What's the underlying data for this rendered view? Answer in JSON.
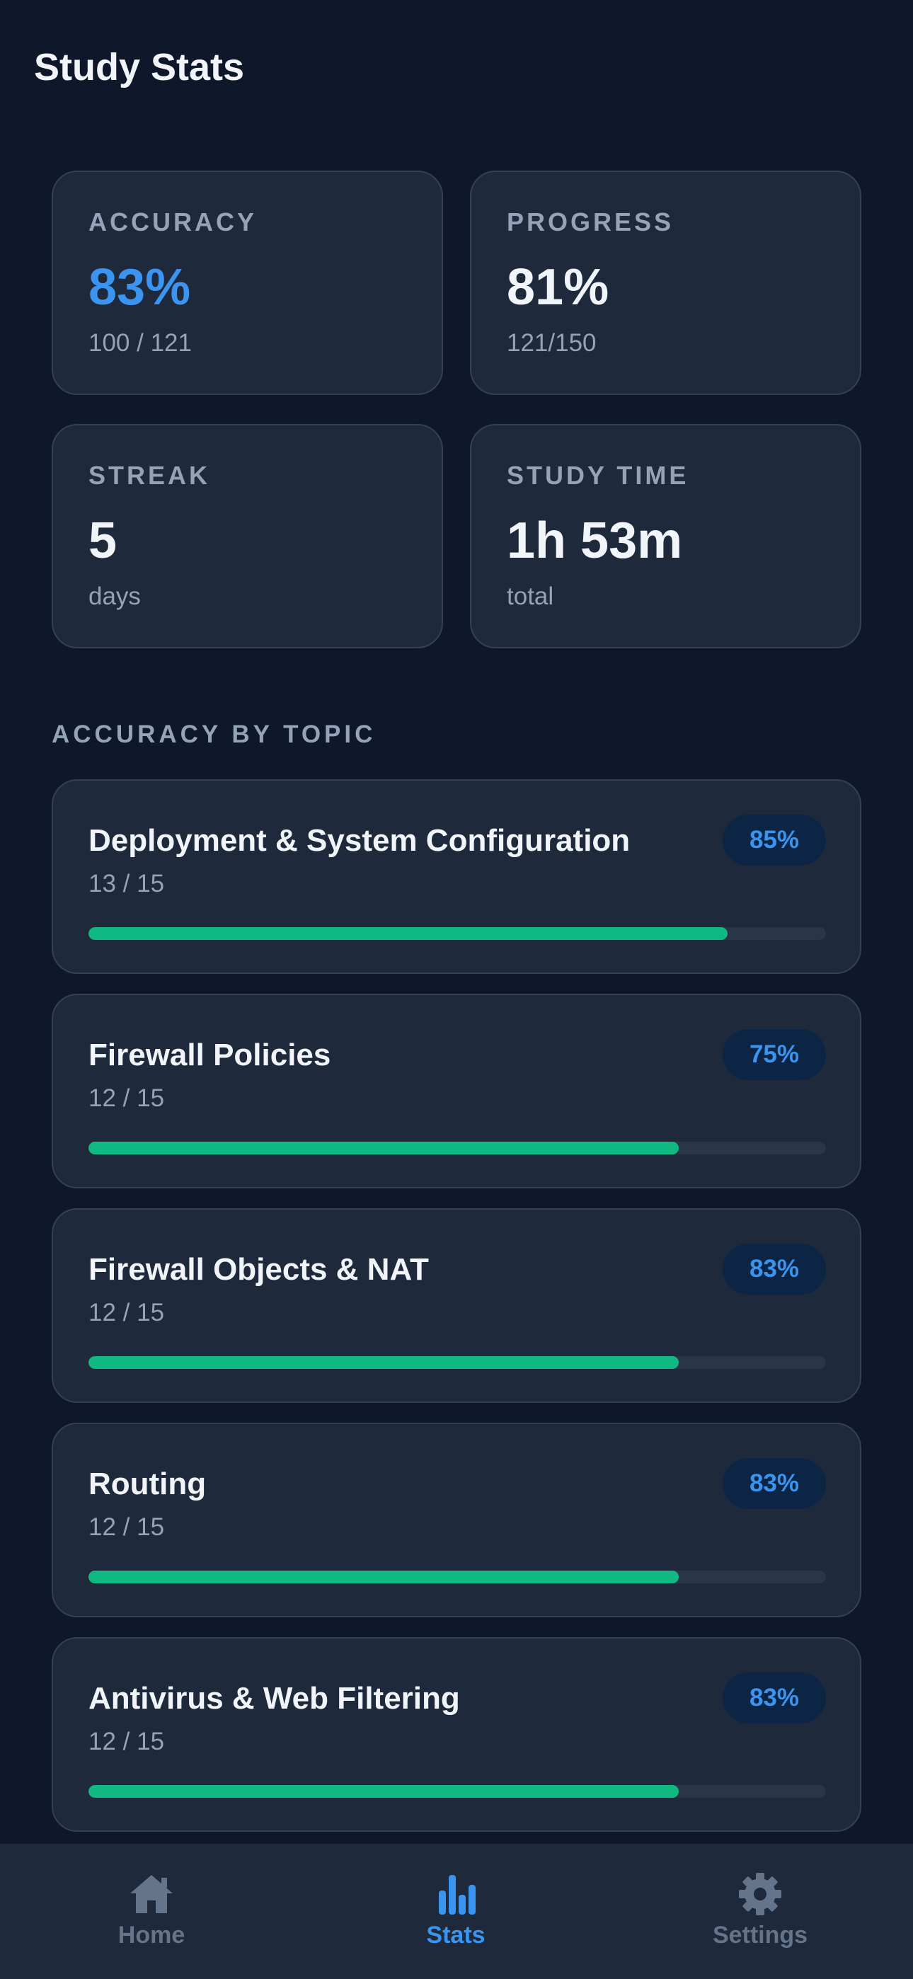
{
  "header": {
    "title": "Study Stats"
  },
  "stats": [
    {
      "label": "ACCURACY",
      "value": "83%",
      "sub": "100 / 121"
    },
    {
      "label": "PROGRESS",
      "value": "81%",
      "sub": "121/150"
    },
    {
      "label": "STREAK",
      "value": "5",
      "sub": "days"
    },
    {
      "label": "STUDY TIME",
      "value": "1h 53m",
      "sub": "total"
    }
  ],
  "section_title": "ACCURACY BY TOPIC",
  "topics": [
    {
      "name": "Deployment & System Configuration",
      "score": "13 / 15",
      "badge": "85%",
      "correct": 13,
      "total": 15
    },
    {
      "name": "Firewall Policies",
      "score": "12 / 15",
      "badge": "75%",
      "correct": 12,
      "total": 15
    },
    {
      "name": "Firewall Objects & NAT",
      "score": "12 / 15",
      "badge": "83%",
      "correct": 12,
      "total": 15
    },
    {
      "name": "Routing",
      "score": "12 / 15",
      "badge": "83%",
      "correct": 12,
      "total": 15
    },
    {
      "name": "Antivirus & Web Filtering",
      "score": "12 / 15",
      "badge": "83%",
      "correct": 12,
      "total": 15
    }
  ],
  "nav": [
    {
      "label": "Home",
      "active": false
    },
    {
      "label": "Stats",
      "active": true
    },
    {
      "label": "Settings",
      "active": false
    }
  ]
}
